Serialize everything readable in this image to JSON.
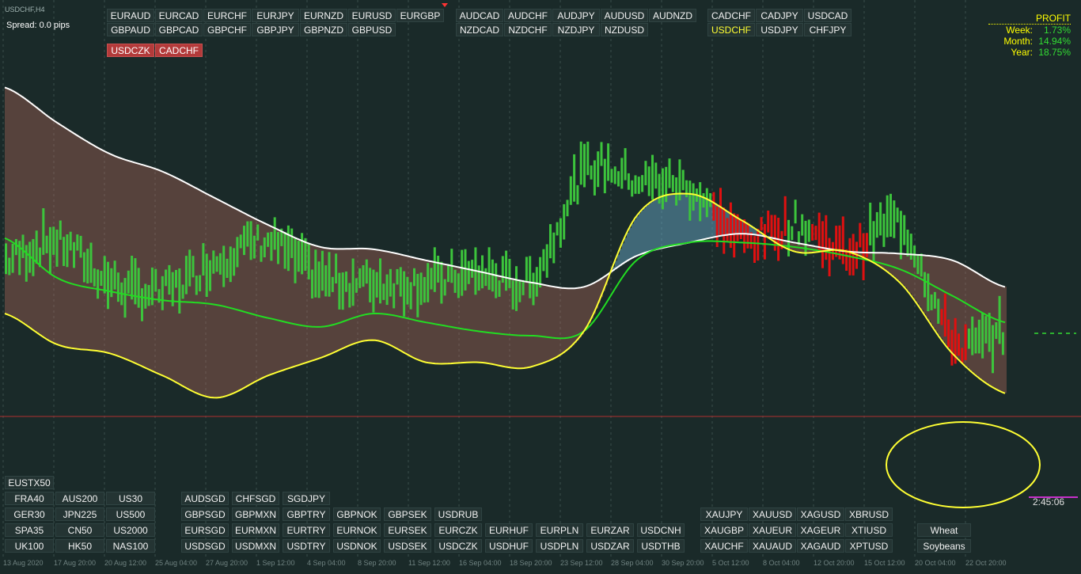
{
  "chart_title": "USDCHF,H4",
  "spread": "Spread: 0.0 pips",
  "profit": {
    "title": "PROFIT",
    "rows": [
      {
        "label": "Week:",
        "value": "1.73%"
      },
      {
        "label": "Month:",
        "value": "14.94%"
      },
      {
        "label": "Year:",
        "value": "18.75%"
      }
    ]
  },
  "timer": "2:45:06",
  "colors": {
    "background": "#1a2a29",
    "bull": "#3cc43c",
    "bear": "#e01010",
    "ema_white": "#ffffff",
    "ema_yellow": "#ffff33",
    "ema_green": "#22dd22",
    "price_line": "#c0392b",
    "ellipse": "#ffff33"
  },
  "buttons": {
    "top_g1_row1": [
      "EURAUD",
      "EURCAD",
      "EURCHF",
      "EURJPY",
      "EURNZD",
      "EURUSD",
      "EURGBP"
    ],
    "top_g1_row2": [
      "GBPAUD",
      "GBPCAD",
      "GBPCHF",
      "GBPJPY",
      "GBPNZD",
      "GBPUSD"
    ],
    "top_g2_row1": [
      "AUDCAD",
      "AUDCHF",
      "AUDJPY",
      "AUDUSD",
      "AUDNZD"
    ],
    "top_g2_row2": [
      "NZDCAD",
      "NZDCHF",
      "NZDJPY",
      "NZDUSD"
    ],
    "top_g3_row1": [
      "CADCHF",
      "CADJPY",
      "USDCAD"
    ],
    "top_g3_row2": [
      "USDCHF",
      "USDJPY",
      "CHFJPY"
    ],
    "red": [
      "USDCZK",
      "CADCHF"
    ],
    "indices_header": "EUSTX50",
    "indices_row1": [
      "FRA40",
      "AUS200",
      "US30"
    ],
    "indices_row2": [
      "GER30",
      "JPN225",
      "US500"
    ],
    "indices_row3": [
      "SPA35",
      "CN50",
      "US2000"
    ],
    "indices_row4": [
      "UK100",
      "HK50",
      "NAS100"
    ],
    "exotic_row1": [
      "AUDSGD",
      "CHFSGD",
      "SGDJPY"
    ],
    "exotic_row2": [
      "GBPSGD",
      "GBPMXN",
      "GBPTRY",
      "GBPNOK",
      "GBPSEK",
      "USDRUB"
    ],
    "exotic_row3": [
      "EURSGD",
      "EURMXN",
      "EURTRY",
      "EURNOK",
      "EURSEK",
      "EURCZK",
      "EURHUF",
      "EURPLN",
      "EURZAR",
      "USDCNH"
    ],
    "exotic_row4": [
      "USDSGD",
      "USDMXN",
      "USDTRY",
      "USDNOK",
      "USDSEK",
      "USDCZK",
      "USDHUF",
      "USDPLN",
      "USDZAR",
      "USDTHB"
    ],
    "metals_row1": [
      "XAUJPY",
      "XAUUSD",
      "XAGUSD",
      "XBRUSD"
    ],
    "metals_row2": [
      "XAUGBP",
      "XAUEUR",
      "XAGEUR",
      "XTIUSD"
    ],
    "metals_row3": [
      "XAUCHF",
      "XAUAUD",
      "XAGAUD",
      "XPTUSD"
    ],
    "commodities": [
      "Wheat",
      "Soybeans"
    ]
  },
  "time_axis": [
    "13 Aug 2020",
    "17 Aug 20:00",
    "20 Aug 12:00",
    "25 Aug 04:00",
    "27 Aug 20:00",
    "1 Sep 12:00",
    "4 Sep 04:00",
    "8 Sep 20:00",
    "11 Sep 12:00",
    "16 Sep 04:00",
    "18 Sep 20:00",
    "23 Sep 12:00",
    "28 Sep 04:00",
    "30 Sep 20:00",
    "5 Oct 12:00",
    "8 Oct 04:00",
    "12 Oct 20:00",
    "15 Oct 12:00",
    "20 Oct 04:00",
    "22 Oct 20:00"
  ],
  "chart_data": {
    "type": "line",
    "title": "USDCHF,H4",
    "x": [
      "13 Aug 2020",
      "17 Aug 20:00",
      "20 Aug 12:00",
      "25 Aug 04:00",
      "27 Aug 20:00",
      "1 Sep 12:00",
      "4 Sep 04:00",
      "8 Sep 20:00",
      "11 Sep 12:00",
      "16 Sep 04:00",
      "18 Sep 20:00",
      "23 Sep 12:00",
      "28 Sep 04:00",
      "30 Sep 20:00",
      "5 Oct 12:00",
      "8 Oct 04:00",
      "12 Oct 20:00",
      "15 Oct 12:00",
      "20 Oct 04:00",
      "22 Oct 20:00"
    ],
    "series": [
      {
        "values": [
          0.52,
          0.56,
          0.47,
          0.45,
          0.52,
          0.56,
          0.48,
          0.47,
          0.47,
          0.49,
          0.48,
          0.72,
          0.7,
          0.68,
          0.57,
          0.6,
          0.54,
          0.6,
          0.34,
          0.36
        ]
      },
      {
        "values": [
          0.91,
          0.83,
          0.76,
          0.72,
          0.66,
          0.6,
          0.55,
          0.545,
          0.52,
          0.495,
          0.47,
          0.46,
          0.53,
          0.56,
          0.58,
          0.56,
          0.54,
          0.535,
          0.52,
          0.46
        ]
      },
      {
        "values": [
          0.57,
          0.48,
          0.45,
          0.43,
          0.42,
          0.39,
          0.37,
          0.4,
          0.38,
          0.36,
          0.35,
          0.36,
          0.52,
          0.56,
          0.56,
          0.55,
          0.53,
          0.5,
          0.44,
          0.38
        ]
      },
      {
        "values": [
          0.4,
          0.33,
          0.31,
          0.26,
          0.21,
          0.26,
          0.3,
          0.34,
          0.29,
          0.29,
          0.28,
          0.36,
          0.62,
          0.67,
          0.61,
          0.54,
          0.54,
          0.47,
          0.31,
          0.22
        ]
      }
    ],
    "markers": {
      "ellipse_region": [
        "20 Oct 04:00",
        "22 Oct 20:00"
      ]
    }
  }
}
